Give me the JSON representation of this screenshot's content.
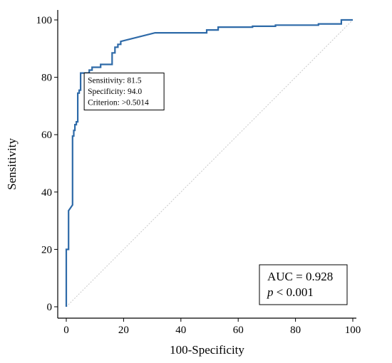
{
  "chart_data": {
    "type": "line",
    "title": "",
    "xlabel": "100-Specificity",
    "ylabel": "Sensitivity",
    "xlim": [
      0,
      100
    ],
    "ylim": [
      0,
      100
    ],
    "xticks": [
      0,
      20,
      40,
      60,
      80,
      100
    ],
    "yticks": [
      0,
      20,
      40,
      60,
      80,
      100
    ],
    "grid": false,
    "reference_line": {
      "from": [
        0,
        0
      ],
      "to": [
        100,
        100
      ],
      "style": "dotted"
    },
    "series": [
      {
        "color": "#2e6aa8",
        "x": [
          0,
          0,
          0.8,
          0.8,
          0.8,
          0.8,
          1.5,
          1.5,
          2.2,
          2.2,
          2.6,
          2.6,
          3.0,
          3.0,
          3.5,
          3.5,
          4.0,
          4.0,
          4.5,
          4.5,
          5.0,
          5.0,
          6.0,
          6.0,
          8.0,
          8.0,
          9.0,
          9.0,
          10.0,
          10.0,
          12.0,
          12.0,
          14.0,
          14.0,
          16.0,
          16.0,
          17.0,
          17.0,
          18.0,
          18.0,
          19.0,
          19.0,
          31.0,
          31.0,
          49.0,
          49.0,
          53.0,
          53.0,
          65.0,
          65.0,
          73.0,
          73.0,
          88.0,
          88.0,
          96.0,
          96.0,
          100.0
        ],
        "y": [
          0,
          20,
          20,
          31.5,
          33.5,
          33.5,
          34.5,
          34.5,
          35.5,
          59.5,
          59.5,
          61.5,
          61.5,
          63.5,
          63.5,
          64.5,
          64.5,
          74.5,
          74.5,
          75.5,
          75.5,
          81.5,
          81.5,
          81.5,
          81.5,
          82.5,
          82.5,
          83.5,
          83.5,
          83.5,
          83.5,
          84.5,
          84.5,
          84.5,
          84.5,
          88.5,
          88.5,
          90.5,
          90.5,
          91.5,
          91.5,
          92.5,
          95.5,
          95.5,
          95.5,
          96.5,
          96.5,
          97.5,
          97.5,
          97.8,
          97.8,
          98.2,
          98.2,
          98.6,
          98.6,
          100,
          100
        ]
      }
    ],
    "criterion_box": {
      "lines": [
        "Sensitivity: 81.5",
        "Specificity: 94.0",
        "Criterion: >0.5014"
      ],
      "point": {
        "x": 6.0,
        "y": 81.5
      }
    },
    "annotation": {
      "auc_line": "AUC = 0.928",
      "p_italic": "p",
      "p_rest": " < 0.001"
    }
  }
}
